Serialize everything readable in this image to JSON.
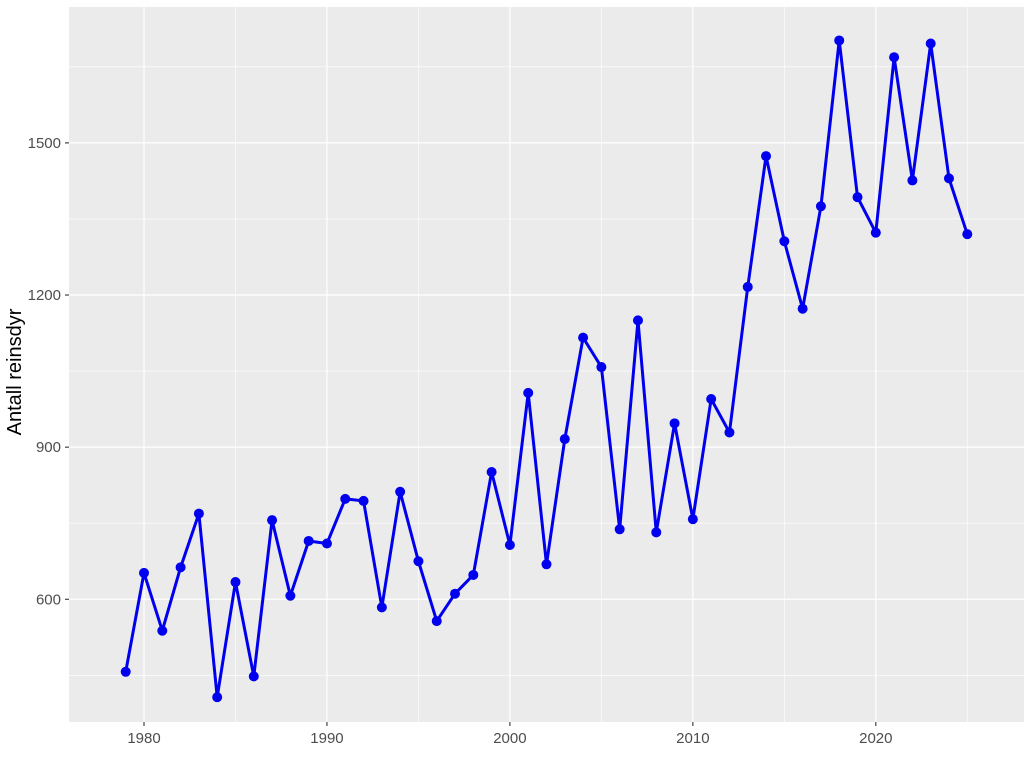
{
  "chart_data": {
    "type": "line",
    "title": "",
    "xlabel": "",
    "ylabel": "Antall reinsdyr",
    "x": [
      1979,
      1980,
      1981,
      1982,
      1983,
      1984,
      1985,
      1986,
      1987,
      1988,
      1989,
      1990,
      1991,
      1992,
      1993,
      1994,
      1995,
      1996,
      1997,
      1998,
      1999,
      2000,
      2001,
      2002,
      2003,
      2004,
      2005,
      2006,
      2007,
      2008,
      2009,
      2010,
      2011,
      2012,
      2013,
      2014,
      2015,
      2016,
      2017,
      2018,
      2019,
      2020,
      2021,
      2022,
      2023,
      2024,
      2025
    ],
    "series": [
      {
        "values": [
          457,
          652,
          538,
          663,
          769,
          407,
          634,
          448,
          756,
          607,
          715,
          710,
          798,
          794,
          584,
          812,
          675,
          557,
          611,
          648,
          851,
          707,
          1007,
          669,
          916,
          1116,
          1058,
          738,
          1150,
          732,
          947,
          758,
          995,
          929,
          1216,
          1474,
          1306,
          1173,
          1375,
          1702,
          1393,
          1323,
          1669,
          1426,
          1696,
          1430,
          1320
        ]
      }
    ],
    "xlim": [
      1975.9,
      2028.1
    ],
    "ylim": [
      358,
      1768
    ],
    "x_ticks": [
      "1980",
      "1990",
      "2000",
      "2010",
      "2020"
    ],
    "y_ticks": [
      "600",
      "900",
      "1200",
      "1500"
    ],
    "grid": true,
    "panel_background": "#ebebeb",
    "line_color": "#0000ee",
    "point_color": "#0000ee"
  }
}
